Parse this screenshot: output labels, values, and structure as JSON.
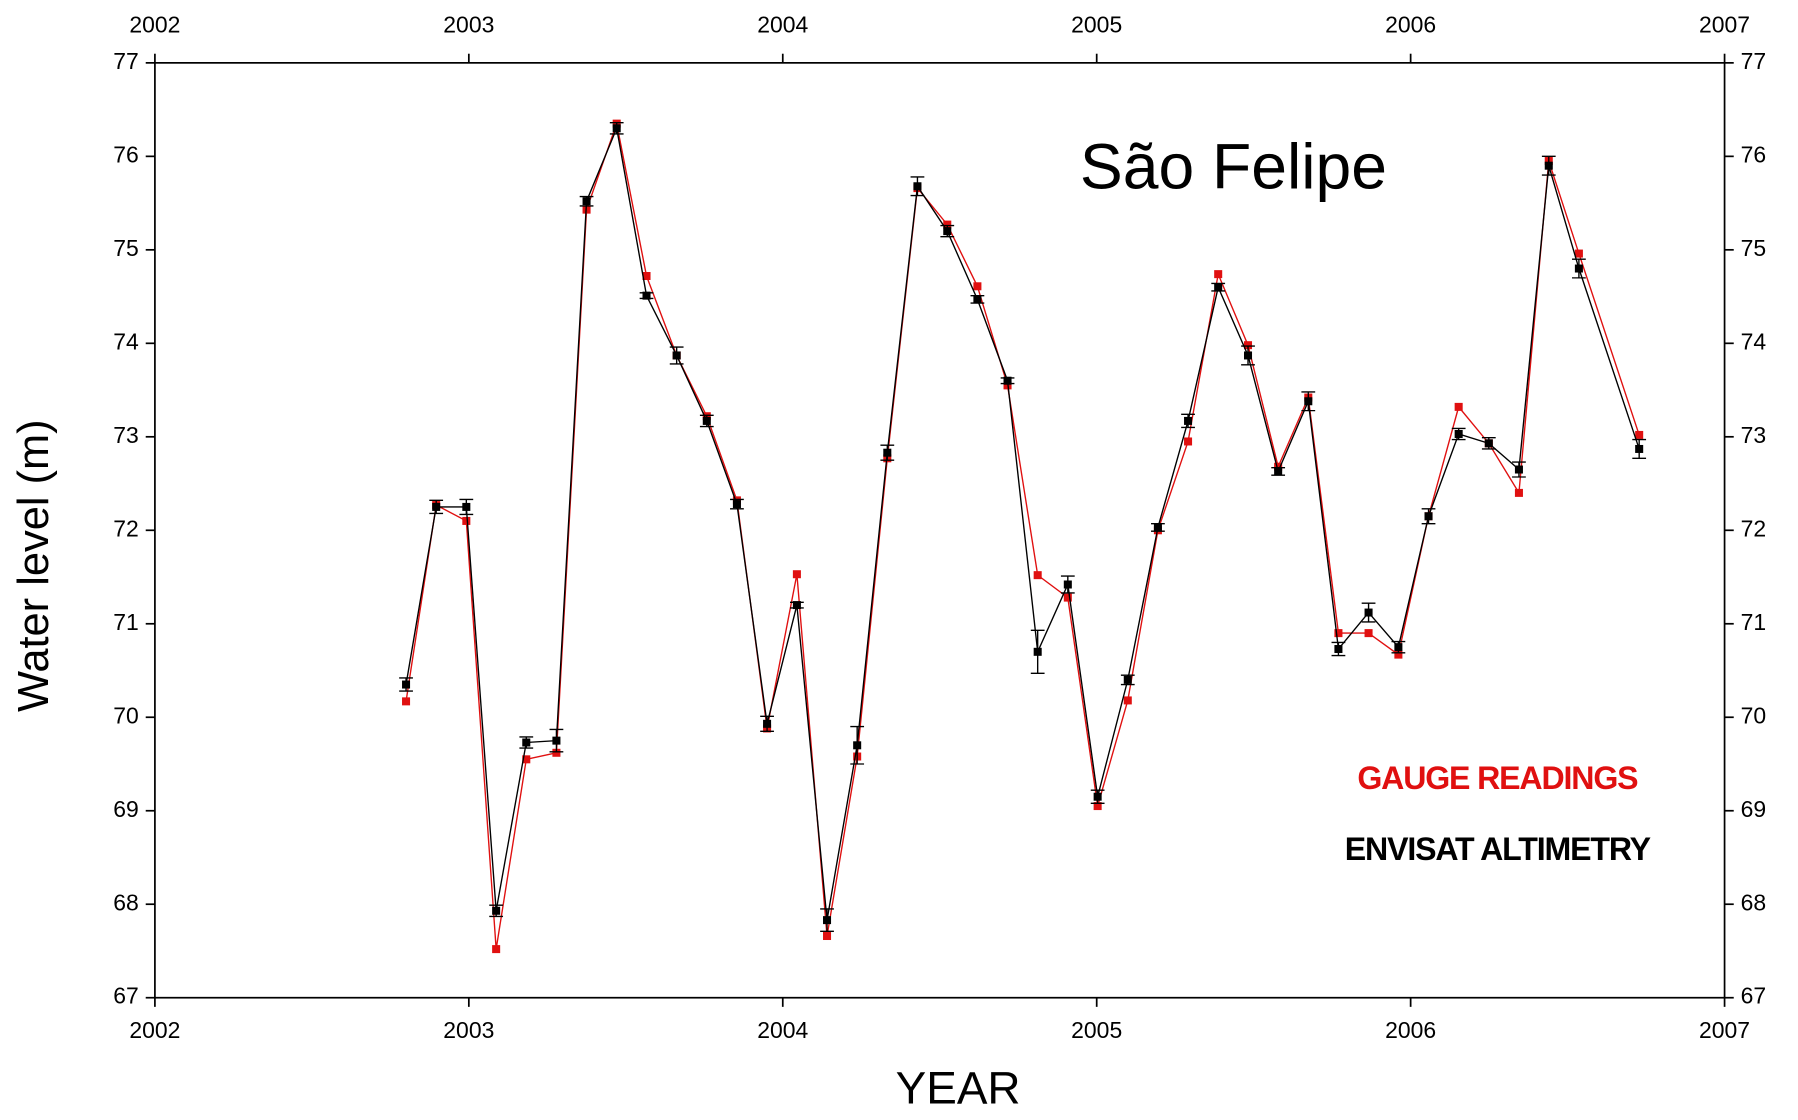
{
  "chart_data": {
    "type": "line",
    "title": "São Felipe",
    "x_label": "YEAR",
    "y_label": "Water level (m)",
    "x": [
      2002.8,
      2002.896,
      2002.992,
      2003.087,
      2003.183,
      2003.279,
      2003.375,
      2003.471,
      2003.566,
      2003.662,
      2003.758,
      2003.854,
      2003.95,
      2004.045,
      2004.141,
      2004.237,
      2004.333,
      2004.429,
      2004.524,
      2004.62,
      2004.716,
      2004.812,
      2004.908,
      2005.003,
      2005.099,
      2005.195,
      2005.291,
      2005.387,
      2005.482,
      2005.578,
      2005.674,
      2005.77,
      2005.866,
      2005.961,
      2006.057,
      2006.153,
      2006.249,
      2006.345,
      2006.44,
      2006.536,
      2006.728
    ],
    "series": [
      {
        "name": "GAUGE READINGS",
        "color": "#e01010",
        "values": [
          70.17,
          72.27,
          72.1,
          67.52,
          69.55,
          69.62,
          75.43,
          76.35,
          74.72,
          73.87,
          73.22,
          72.32,
          69.88,
          71.53,
          67.66,
          69.58,
          72.77,
          75.66,
          75.27,
          74.61,
          73.55,
          71.52,
          71.28,
          69.05,
          70.18,
          72.0,
          72.95,
          74.74,
          73.98,
          72.68,
          73.42,
          70.9,
          70.9,
          70.67,
          72.15,
          73.32,
          72.93,
          72.4,
          75.95,
          74.96,
          73.02
        ]
      },
      {
        "name": "ENVISAT ALTIMETRY",
        "color": "#000000",
        "values": [
          70.35,
          72.25,
          72.25,
          67.93,
          69.73,
          69.75,
          75.52,
          76.3,
          74.51,
          73.87,
          73.17,
          72.28,
          69.93,
          71.2,
          67.83,
          69.7,
          72.83,
          75.68,
          75.2,
          74.47,
          73.6,
          70.7,
          71.42,
          69.15,
          70.4,
          72.03,
          73.17,
          74.6,
          73.87,
          72.63,
          73.38,
          70.73,
          71.12,
          70.75,
          72.15,
          73.03,
          72.93,
          72.65,
          75.9,
          74.8,
          72.87
        ],
        "errors": [
          0.07,
          0.07,
          0.08,
          0.06,
          0.06,
          0.12,
          0.05,
          0.06,
          0.03,
          0.09,
          0.06,
          0.05,
          0.08,
          0.03,
          0.12,
          0.2,
          0.08,
          0.1,
          0.06,
          0.04,
          0.03,
          0.23,
          0.09,
          0.07,
          0.05,
          0.04,
          0.07,
          0.04,
          0.1,
          0.04,
          0.1,
          0.07,
          0.1,
          0.06,
          0.08,
          0.06,
          0.06,
          0.08,
          0.1,
          0.1,
          0.1
        ]
      }
    ],
    "xlim": [
      2002,
      2007
    ],
    "xticks": [
      2002,
      2003,
      2004,
      2005,
      2006,
      2007
    ],
    "ylim": [
      67,
      77
    ],
    "yticks": [
      67,
      68,
      69,
      70,
      71,
      72,
      73,
      74,
      75,
      76,
      77
    ],
    "grid": false
  }
}
